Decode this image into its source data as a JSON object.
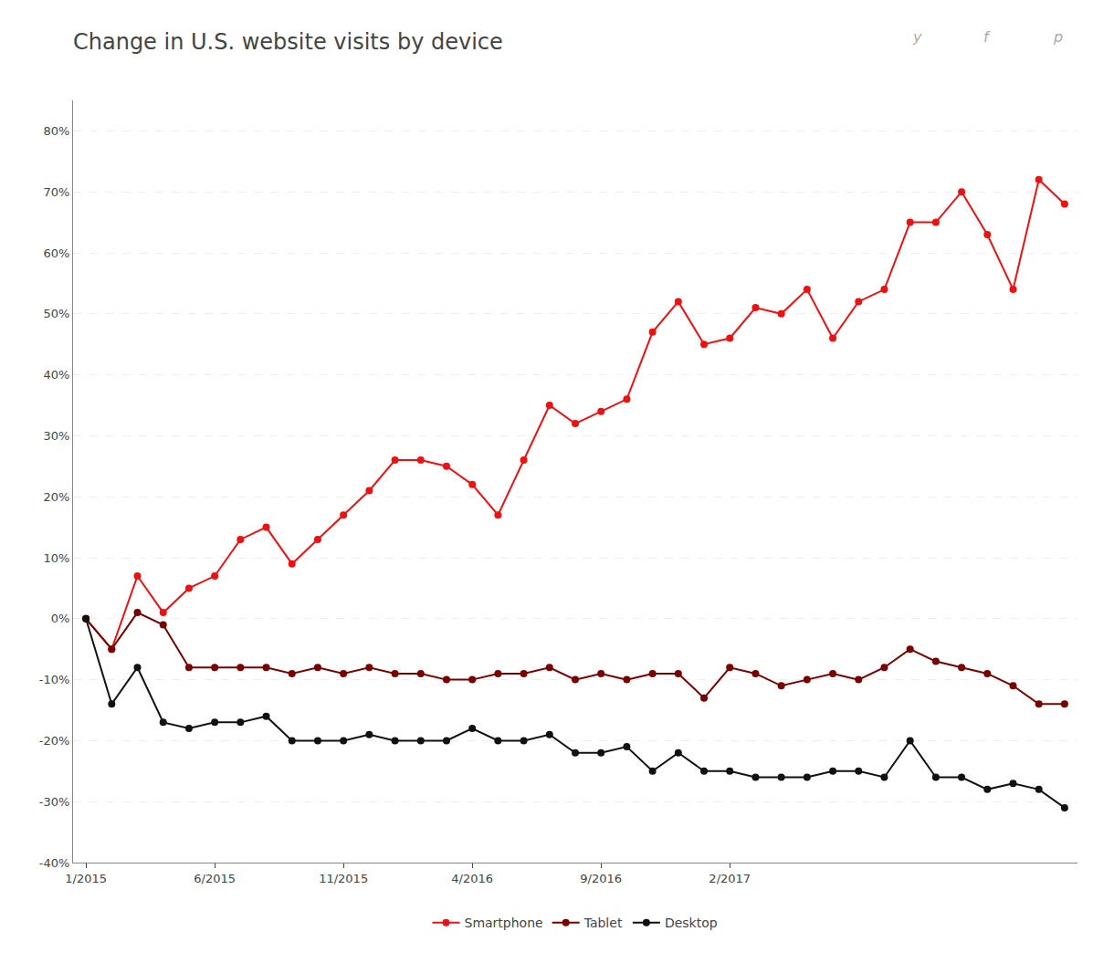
{
  "chart_data": {
    "type": "line",
    "title": "Change in U.S. website visits by device",
    "x": [
      0,
      1,
      2,
      3,
      4,
      5,
      6,
      7,
      8,
      9,
      10,
      11,
      12,
      13,
      14,
      15,
      16,
      17,
      18,
      19,
      20,
      21,
      22,
      23,
      24,
      25,
      26,
      27,
      28,
      29,
      30,
      31,
      32,
      33,
      34,
      35,
      36,
      37,
      38
    ],
    "series": [
      {
        "name": "Smartphone",
        "color": "#ee1111",
        "marker": "circle",
        "values": [
          0,
          -5,
          7,
          1,
          5,
          7,
          13,
          15,
          9,
          13,
          17,
          21,
          26,
          26,
          25,
          22,
          17,
          26,
          35,
          32,
          34,
          36,
          47,
          52,
          45,
          46,
          51,
          50,
          54,
          46,
          52,
          54,
          65,
          65,
          70,
          63,
          54,
          72,
          68
        ]
      },
      {
        "name": "Tablet",
        "color": "#7a0000",
        "marker": "circle",
        "values": [
          0,
          -5,
          1,
          -1,
          -8,
          -8,
          -8,
          -8,
          -9,
          -8,
          -9,
          -8,
          -9,
          -9,
          -10,
          -10,
          -9,
          -9,
          -8,
          -10,
          -9,
          -10,
          -9,
          -9,
          -13,
          -8,
          -9,
          -11,
          -10,
          -9,
          -10,
          -8,
          -5,
          -7,
          -8,
          -9,
          -11,
          -14,
          -14
        ]
      },
      {
        "name": "Desktop",
        "color": "#111111",
        "marker": "circle",
        "values": [
          0,
          -14,
          -8,
          -17,
          -18,
          -17,
          -17,
          -16,
          -20,
          -20,
          -20,
          -19,
          -20,
          -20,
          -20,
          -18,
          -20,
          -20,
          -19,
          -22,
          -22,
          -21,
          -25,
          -22,
          -25,
          -25,
          -26,
          -26,
          -26,
          -25,
          -25,
          -26,
          -20,
          -26,
          -26,
          -28,
          -27,
          -28,
          -31
        ]
      }
    ],
    "xlim": [
      -0.5,
      38.5
    ],
    "xticks": [
      {
        "value": 0,
        "label": "1/2015"
      },
      {
        "value": 5,
        "label": "6/2015"
      },
      {
        "value": 10,
        "label": "11/2015"
      },
      {
        "value": 15,
        "label": "4/2016"
      },
      {
        "value": 20,
        "label": "9/2016"
      },
      {
        "value": 25,
        "label": "2/2017"
      }
    ],
    "ylim": [
      -40,
      85
    ],
    "yticks": [
      {
        "value": -40,
        "label": "-40%"
      },
      {
        "value": -30,
        "label": "-30%"
      },
      {
        "value": -20,
        "label": "-20%"
      },
      {
        "value": -10,
        "label": "-10%"
      },
      {
        "value": 0,
        "label": "0%"
      },
      {
        "value": 10,
        "label": "10%"
      },
      {
        "value": 20,
        "label": "20%"
      },
      {
        "value": 30,
        "label": "30%"
      },
      {
        "value": 40,
        "label": "40%"
      },
      {
        "value": 50,
        "label": "50%"
      },
      {
        "value": 60,
        "label": "60%"
      },
      {
        "value": 70,
        "label": "70%"
      },
      {
        "value": 80,
        "label": "80%"
      }
    ],
    "grid": "y",
    "legend": "bottom",
    "annotations": [
      "y",
      "f",
      "p"
    ]
  }
}
